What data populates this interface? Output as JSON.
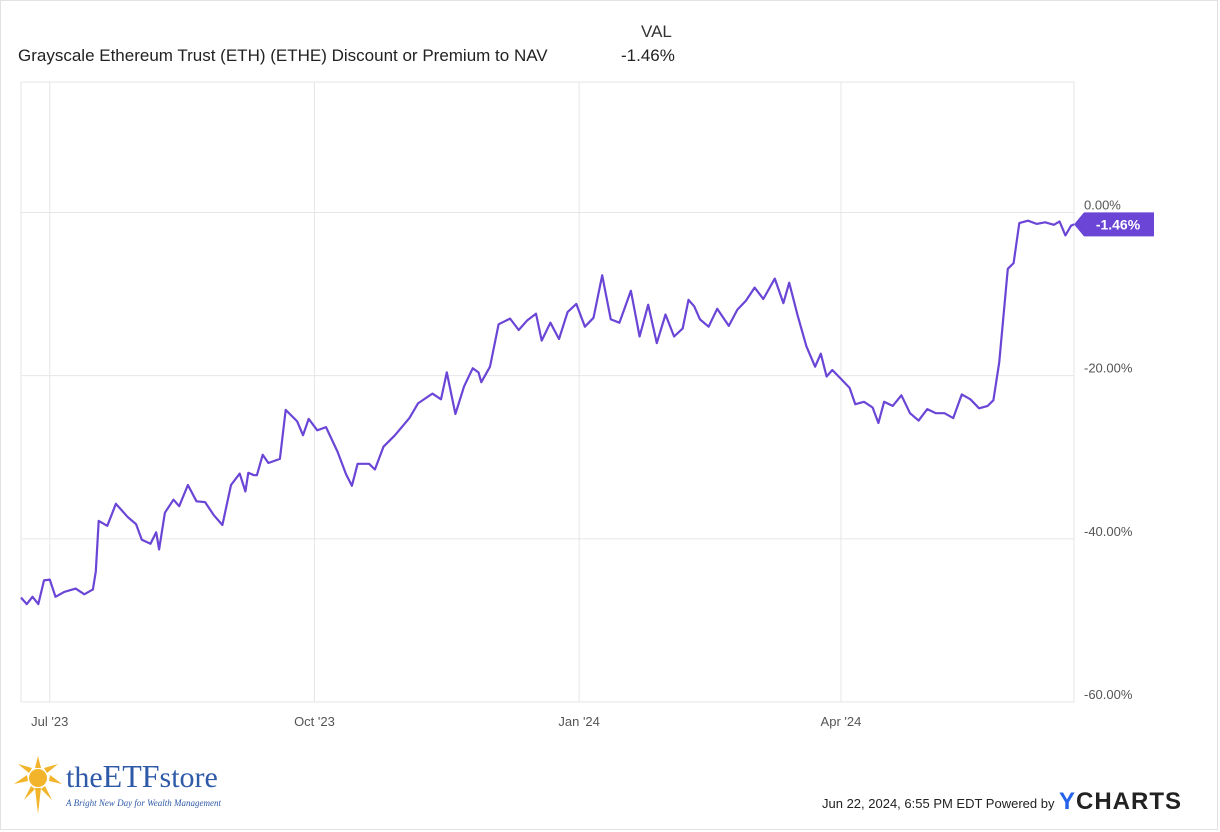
{
  "legend": {
    "val_header": "VAL",
    "series_name": "Grayscale Ethereum Trust (ETH) (ETHE) Discount or Premium to NAV",
    "series_value": "-1.46%"
  },
  "footer": {
    "timestamp": "Jun 22, 2024, 6:55 PM EDT Powered by",
    "ycharts_y": "Y",
    "ycharts_rest": "CHARTS"
  },
  "logo": {
    "name_pre": "the",
    "name_big": "ETF",
    "name_post": "store",
    "tagline": "A Bright New Day for Wealth Management"
  },
  "colors": {
    "line": "#6a45d6",
    "grid": "#e6e6e6",
    "axis_text": "#555555"
  },
  "chart_data": {
    "type": "line",
    "title": "",
    "xlabel": "",
    "ylabel": "",
    "xlim": [
      "2023-06-21",
      "2024-06-21"
    ],
    "ylim": [
      -60,
      16
    ],
    "y_ticks": [
      {
        "value": 0,
        "label": "0.00%"
      },
      {
        "value": -20,
        "label": "-20.00%"
      },
      {
        "value": -40,
        "label": "-40.00%"
      },
      {
        "value": -60,
        "label": "-60.00%"
      }
    ],
    "x_ticks": [
      {
        "date": "2023-07-01",
        "label": "Jul '23"
      },
      {
        "date": "2023-10-01",
        "label": "Oct '23"
      },
      {
        "date": "2024-01-01",
        "label": "Jan '24"
      },
      {
        "date": "2024-04-01",
        "label": "Apr '24"
      }
    ],
    "grid": true,
    "end_label": "-1.46%",
    "series": [
      {
        "values": [
          [
            "2023-06-21",
            -47.2
          ],
          [
            "2023-06-23",
            -48.0
          ],
          [
            "2023-06-25",
            -47.1
          ],
          [
            "2023-06-27",
            -48.0
          ],
          [
            "2023-06-29",
            -45.1
          ],
          [
            "2023-07-01",
            -45.0
          ],
          [
            "2023-07-03",
            -47.1
          ],
          [
            "2023-07-06",
            -46.5
          ],
          [
            "2023-07-10",
            -46.1
          ],
          [
            "2023-07-13",
            -46.8
          ],
          [
            "2023-07-16",
            -46.2
          ],
          [
            "2023-07-17",
            -44.0
          ],
          [
            "2023-07-18",
            -37.8
          ],
          [
            "2023-07-21",
            -38.4
          ],
          [
            "2023-07-24",
            -35.7
          ],
          [
            "2023-07-28",
            -37.3
          ],
          [
            "2023-07-31",
            -38.2
          ],
          [
            "2023-08-02",
            -40.1
          ],
          [
            "2023-08-05",
            -40.6
          ],
          [
            "2023-08-07",
            -39.2
          ],
          [
            "2023-08-08",
            -41.3
          ],
          [
            "2023-08-10",
            -36.8
          ],
          [
            "2023-08-13",
            -35.2
          ],
          [
            "2023-08-15",
            -36.0
          ],
          [
            "2023-08-18",
            -33.4
          ],
          [
            "2023-08-21",
            -35.4
          ],
          [
            "2023-08-24",
            -35.5
          ],
          [
            "2023-08-27",
            -37.1
          ],
          [
            "2023-08-30",
            -38.3
          ],
          [
            "2023-09-02",
            -33.4
          ],
          [
            "2023-09-05",
            -32.0
          ],
          [
            "2023-09-07",
            -34.2
          ],
          [
            "2023-09-08",
            -31.9
          ],
          [
            "2023-09-10",
            -32.2
          ],
          [
            "2023-09-11",
            -32.2
          ],
          [
            "2023-09-13",
            -29.7
          ],
          [
            "2023-09-15",
            -30.7
          ],
          [
            "2023-09-19",
            -30.2
          ],
          [
            "2023-09-21",
            -24.2
          ],
          [
            "2023-09-25",
            -25.6
          ],
          [
            "2023-09-27",
            -27.3
          ],
          [
            "2023-09-29",
            -25.3
          ],
          [
            "2023-10-02",
            -26.7
          ],
          [
            "2023-10-05",
            -26.3
          ],
          [
            "2023-10-09",
            -29.3
          ],
          [
            "2023-10-12",
            -32.1
          ],
          [
            "2023-10-14",
            -33.5
          ],
          [
            "2023-10-16",
            -30.8
          ],
          [
            "2023-10-20",
            -30.8
          ],
          [
            "2023-10-22",
            -31.5
          ],
          [
            "2023-10-25",
            -28.7
          ],
          [
            "2023-10-29",
            -27.3
          ],
          [
            "2023-11-03",
            -25.2
          ],
          [
            "2023-11-06",
            -23.4
          ],
          [
            "2023-11-11",
            -22.2
          ],
          [
            "2023-11-14",
            -22.9
          ],
          [
            "2023-11-16",
            -19.6
          ],
          [
            "2023-11-19",
            -24.7
          ],
          [
            "2023-11-22",
            -21.3
          ],
          [
            "2023-11-25",
            -19.1
          ],
          [
            "2023-11-27",
            -19.6
          ],
          [
            "2023-11-28",
            -20.8
          ],
          [
            "2023-12-01",
            -18.9
          ],
          [
            "2023-12-04",
            -13.7
          ],
          [
            "2023-12-08",
            -13.0
          ],
          [
            "2023-12-11",
            -14.4
          ],
          [
            "2023-12-14",
            -13.2
          ],
          [
            "2023-12-17",
            -12.4
          ],
          [
            "2023-12-19",
            -15.7
          ],
          [
            "2023-12-22",
            -13.5
          ],
          [
            "2023-12-25",
            -15.5
          ],
          [
            "2023-12-28",
            -12.2
          ],
          [
            "2023-12-31",
            -11.2
          ],
          [
            "2024-01-03",
            -14.0
          ],
          [
            "2024-01-06",
            -12.9
          ],
          [
            "2024-01-09",
            -7.7
          ],
          [
            "2024-01-12",
            -13.1
          ],
          [
            "2024-01-15",
            -13.5
          ],
          [
            "2024-01-19",
            -9.6
          ],
          [
            "2024-01-22",
            -15.2
          ],
          [
            "2024-01-25",
            -11.3
          ],
          [
            "2024-01-28",
            -16.0
          ],
          [
            "2024-01-31",
            -12.5
          ],
          [
            "2024-02-03",
            -15.2
          ],
          [
            "2024-02-06",
            -14.2
          ],
          [
            "2024-02-08",
            -10.7
          ],
          [
            "2024-02-10",
            -11.5
          ],
          [
            "2024-02-12",
            -13.1
          ],
          [
            "2024-02-15",
            -14.0
          ],
          [
            "2024-02-18",
            -11.8
          ],
          [
            "2024-02-22",
            -13.9
          ],
          [
            "2024-02-25",
            -11.9
          ],
          [
            "2024-02-28",
            -10.8
          ],
          [
            "2024-03-02",
            -9.2
          ],
          [
            "2024-03-05",
            -10.6
          ],
          [
            "2024-03-09",
            -8.1
          ],
          [
            "2024-03-12",
            -11.1
          ],
          [
            "2024-03-14",
            -8.6
          ],
          [
            "2024-03-17",
            -12.7
          ],
          [
            "2024-03-20",
            -16.4
          ],
          [
            "2024-03-23",
            -18.9
          ],
          [
            "2024-03-25",
            -17.3
          ],
          [
            "2024-03-27",
            -20.1
          ],
          [
            "2024-03-29",
            -19.3
          ],
          [
            "2024-04-01",
            -20.4
          ],
          [
            "2024-04-04",
            -21.5
          ],
          [
            "2024-04-06",
            -23.5
          ],
          [
            "2024-04-09",
            -23.2
          ],
          [
            "2024-04-12",
            -23.9
          ],
          [
            "2024-04-14",
            -25.8
          ],
          [
            "2024-04-16",
            -23.2
          ],
          [
            "2024-04-19",
            -23.7
          ],
          [
            "2024-04-22",
            -22.4
          ],
          [
            "2024-04-25",
            -24.6
          ],
          [
            "2024-04-28",
            -25.5
          ],
          [
            "2024-05-01",
            -24.1
          ],
          [
            "2024-05-04",
            -24.6
          ],
          [
            "2024-05-07",
            -24.6
          ],
          [
            "2024-05-10",
            -25.2
          ],
          [
            "2024-05-13",
            -22.3
          ],
          [
            "2024-05-16",
            -22.9
          ],
          [
            "2024-05-19",
            -24.0
          ],
          [
            "2024-05-22",
            -23.7
          ],
          [
            "2024-05-24",
            -23.0
          ],
          [
            "2024-05-26",
            -18.4
          ],
          [
            "2024-05-29",
            -6.9
          ],
          [
            "2024-05-31",
            -6.2
          ],
          [
            "2024-06-02",
            -1.3
          ],
          [
            "2024-06-05",
            -1.0
          ],
          [
            "2024-06-08",
            -1.4
          ],
          [
            "2024-06-11",
            -1.2
          ],
          [
            "2024-06-14",
            -1.5
          ],
          [
            "2024-06-16",
            -1.1
          ],
          [
            "2024-06-18",
            -2.8
          ],
          [
            "2024-06-20",
            -1.6
          ],
          [
            "2024-06-21",
            -1.46
          ]
        ]
      }
    ]
  }
}
